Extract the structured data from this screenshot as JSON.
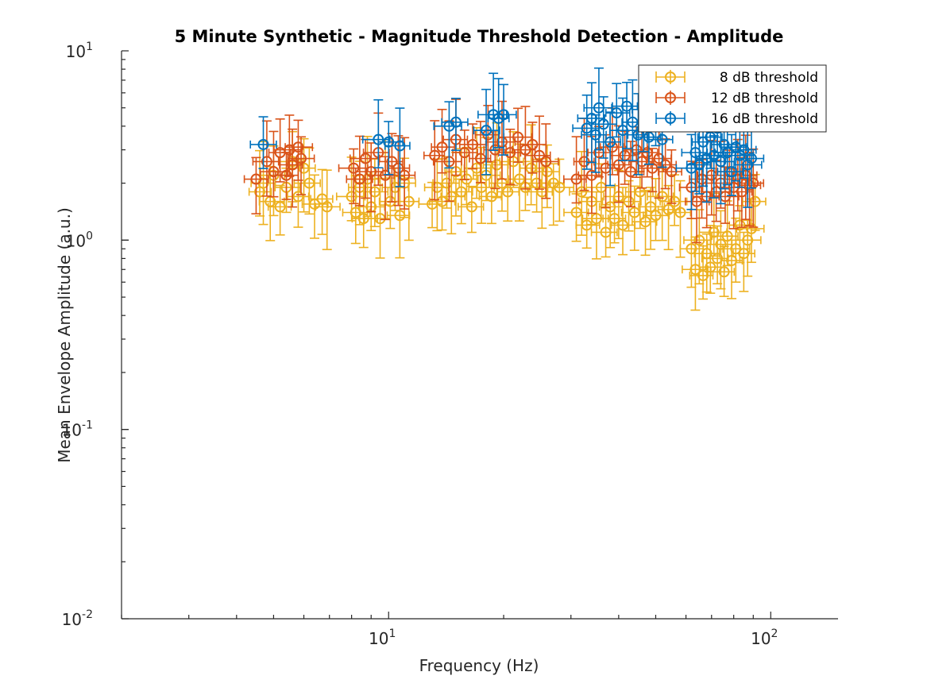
{
  "chart_data": {
    "type": "scatter",
    "title": "5 Minute Synthetic - Magnitude Threshold Detection - Amplitude",
    "xlabel": "Frequency (Hz)",
    "ylabel": "Mean Envelope Amplitude (a.u.)",
    "xscale": "log",
    "yscale": "log",
    "xlim": [
      2,
      150
    ],
    "ylim": [
      0.01,
      10
    ],
    "x_ticks": [
      {
        "value": 10,
        "base": "10",
        "exp": "1"
      },
      {
        "value": 100,
        "base": "10",
        "exp": "2"
      }
    ],
    "y_ticks": [
      {
        "value": 0.01,
        "base": "10",
        "exp": "-2"
      },
      {
        "value": 0.1,
        "base": "10",
        "exp": "-1"
      },
      {
        "value": 1,
        "base": "10",
        "exp": "0"
      },
      {
        "value": 10,
        "base": "10",
        "exp": "1"
      }
    ],
    "grid": false,
    "legend_position": "top-right",
    "marker": "circle-with-errorbars",
    "series": [
      {
        "name": "8 dB threshold",
        "color": "#EDB120",
        "points": [
          [
            4.6,
            1.8
          ],
          [
            4.7,
            2.0
          ],
          [
            4.9,
            1.6
          ],
          [
            5.0,
            2.2
          ],
          [
            5.2,
            1.5
          ],
          [
            5.4,
            1.9
          ],
          [
            5.6,
            2.6
          ],
          [
            5.8,
            1.7
          ],
          [
            6.0,
            2.4
          ],
          [
            6.2,
            2.0
          ],
          [
            6.4,
            1.55
          ],
          [
            6.7,
            1.65
          ],
          [
            6.9,
            1.5
          ],
          [
            8.0,
            1.7
          ],
          [
            8.2,
            1.4
          ],
          [
            8.4,
            1.9
          ],
          [
            8.6,
            1.3
          ],
          [
            8.8,
            2.1
          ],
          [
            9.0,
            1.5
          ],
          [
            9.2,
            1.8
          ],
          [
            9.5,
            1.3
          ],
          [
            9.8,
            2.2
          ],
          [
            10.1,
            1.6
          ],
          [
            10.4,
            1.9
          ],
          [
            10.7,
            1.35
          ],
          [
            11.0,
            2.0
          ],
          [
            11.3,
            1.6
          ],
          [
            13.0,
            1.55
          ],
          [
            13.4,
            1.9
          ],
          [
            13.8,
            1.6
          ],
          [
            14.2,
            2.0
          ],
          [
            14.6,
            1.7
          ],
          [
            15.0,
            2.3
          ],
          [
            15.5,
            1.8
          ],
          [
            16.0,
            2.1
          ],
          [
            16.5,
            1.5
          ],
          [
            17.0,
            2.4
          ],
          [
            17.5,
            1.9
          ],
          [
            18.0,
            2.2
          ],
          [
            18.6,
            1.7
          ],
          [
            19.2,
            2.5
          ],
          [
            19.8,
            2.0
          ],
          [
            20.5,
            1.8
          ],
          [
            21.2,
            2.6
          ],
          [
            22.0,
            2.1
          ],
          [
            22.8,
            1.9
          ],
          [
            23.6,
            2.4
          ],
          [
            24.4,
            2.0
          ],
          [
            25.2,
            1.8
          ],
          [
            26.0,
            2.3
          ],
          [
            27.0,
            2.0
          ],
          [
            28.0,
            1.9
          ],
          [
            31.0,
            1.4
          ],
          [
            32.0,
            1.8
          ],
          [
            33.0,
            1.2
          ],
          [
            34.0,
            1.6
          ],
          [
            35.0,
            1.3
          ],
          [
            36.0,
            1.9
          ],
          [
            37.0,
            1.1
          ],
          [
            38.0,
            1.5
          ],
          [
            39.0,
            1.3
          ],
          [
            40.0,
            1.7
          ],
          [
            41.0,
            1.2
          ],
          [
            42.5,
            1.6
          ],
          [
            44.0,
            1.4
          ],
          [
            45.5,
            1.8
          ],
          [
            47.0,
            1.25
          ],
          [
            48.5,
            1.5
          ],
          [
            50.0,
            1.35
          ],
          [
            52.0,
            1.7
          ],
          [
            54.0,
            1.45
          ],
          [
            56.0,
            1.6
          ],
          [
            58.0,
            1.4
          ],
          [
            62.0,
            0.9
          ],
          [
            63.5,
            0.7
          ],
          [
            65.0,
            1.0
          ],
          [
            66.5,
            0.65
          ],
          [
            68.0,
            0.85
          ],
          [
            69.5,
            0.72
          ],
          [
            71.0,
            1.1
          ],
          [
            72.5,
            0.8
          ],
          [
            74.0,
            0.95
          ],
          [
            75.5,
            0.68
          ],
          [
            77.0,
            1.05
          ],
          [
            79.0,
            0.78
          ],
          [
            81.0,
            0.9
          ],
          [
            83.0,
            1.2
          ],
          [
            85.0,
            0.85
          ],
          [
            87.0,
            1.0
          ],
          [
            89.0,
            1.15
          ],
          [
            91.0,
            1.6
          ]
        ]
      },
      {
        "name": "12 dB threshold",
        "color": "#D95319",
        "points": [
          [
            4.5,
            2.1
          ],
          [
            4.8,
            2.6
          ],
          [
            5.0,
            2.3
          ],
          [
            5.2,
            2.9
          ],
          [
            5.4,
            2.2
          ],
          [
            5.5,
            3.0
          ],
          [
            5.6,
            2.5
          ],
          [
            5.8,
            3.1
          ],
          [
            5.9,
            2.7
          ],
          [
            8.1,
            2.4
          ],
          [
            8.4,
            2.1
          ],
          [
            8.7,
            2.7
          ],
          [
            9.0,
            2.3
          ],
          [
            9.4,
            2.9
          ],
          [
            9.8,
            2.2
          ],
          [
            10.2,
            2.6
          ],
          [
            10.6,
            2.4
          ],
          [
            11.0,
            2.2
          ],
          [
            13.2,
            2.8
          ],
          [
            13.8,
            3.1
          ],
          [
            14.4,
            2.6
          ],
          [
            15.0,
            3.4
          ],
          [
            15.8,
            2.9
          ],
          [
            16.6,
            3.2
          ],
          [
            17.4,
            2.7
          ],
          [
            18.2,
            3.6
          ],
          [
            19.0,
            3.0
          ],
          [
            19.8,
            3.3
          ],
          [
            20.8,
            2.9
          ],
          [
            21.8,
            3.5
          ],
          [
            22.8,
            3.0
          ],
          [
            23.8,
            3.2
          ],
          [
            24.8,
            2.8
          ],
          [
            25.8,
            2.6
          ],
          [
            31.0,
            2.1
          ],
          [
            32.5,
            2.6
          ],
          [
            34.0,
            2.2
          ],
          [
            35.5,
            2.9
          ],
          [
            37.0,
            2.4
          ],
          [
            38.5,
            3.1
          ],
          [
            40.0,
            2.5
          ],
          [
            41.5,
            2.8
          ],
          [
            43.0,
            2.3
          ],
          [
            44.5,
            3.0
          ],
          [
            46.0,
            2.6
          ],
          [
            47.5,
            2.9
          ],
          [
            49.0,
            2.4
          ],
          [
            51.0,
            2.7
          ],
          [
            53.0,
            2.5
          ],
          [
            55.0,
            2.3
          ],
          [
            62.0,
            1.9
          ],
          [
            64.0,
            1.6
          ],
          [
            66.0,
            2.1
          ],
          [
            68.0,
            1.7
          ],
          [
            70.0,
            2.2
          ],
          [
            72.0,
            1.8
          ],
          [
            74.0,
            2.0
          ],
          [
            76.0,
            1.7
          ],
          [
            78.0,
            2.3
          ],
          [
            80.0,
            1.9
          ],
          [
            82.0,
            2.1
          ],
          [
            84.0,
            1.8
          ],
          [
            86.0,
            2.2
          ],
          [
            88.0,
            1.95
          ],
          [
            90.0,
            2.0
          ]
        ]
      },
      {
        "name": "16 dB threshold",
        "color": "#0072BD",
        "points": [
          [
            4.7,
            3.2
          ],
          [
            9.4,
            3.4
          ],
          [
            10.0,
            3.3
          ],
          [
            10.7,
            3.15
          ],
          [
            14.4,
            4.0
          ],
          [
            15.0,
            4.2
          ],
          [
            18.0,
            3.8
          ],
          [
            18.8,
            4.6
          ],
          [
            19.4,
            4.4
          ],
          [
            20.0,
            4.6
          ],
          [
            33.0,
            3.9
          ],
          [
            34.0,
            4.4
          ],
          [
            34.8,
            3.6
          ],
          [
            35.5,
            5.0
          ],
          [
            36.5,
            4.1
          ],
          [
            38.0,
            3.3
          ],
          [
            39.5,
            4.7
          ],
          [
            41.0,
            3.8
          ],
          [
            42.0,
            5.1
          ],
          [
            43.5,
            4.2
          ],
          [
            45.0,
            3.6
          ],
          [
            46.5,
            4.9
          ],
          [
            48.0,
            3.5
          ],
          [
            50.0,
            4.3
          ],
          [
            52.0,
            3.4
          ],
          [
            62.0,
            2.4
          ],
          [
            63.5,
            2.9
          ],
          [
            65.0,
            2.5
          ],
          [
            66.5,
            3.3
          ],
          [
            68.0,
            2.7
          ],
          [
            69.5,
            3.5
          ],
          [
            71.0,
            2.8
          ],
          [
            72.5,
            3.9
          ],
          [
            74.0,
            2.6
          ],
          [
            75.5,
            3.2
          ],
          [
            77.0,
            2.9
          ],
          [
            79.0,
            2.3
          ],
          [
            81.0,
            3.1
          ],
          [
            83.0,
            2.8
          ],
          [
            85.0,
            3.0
          ],
          [
            87.0,
            2.5
          ],
          [
            89.0,
            2.7
          ]
        ]
      }
    ]
  }
}
